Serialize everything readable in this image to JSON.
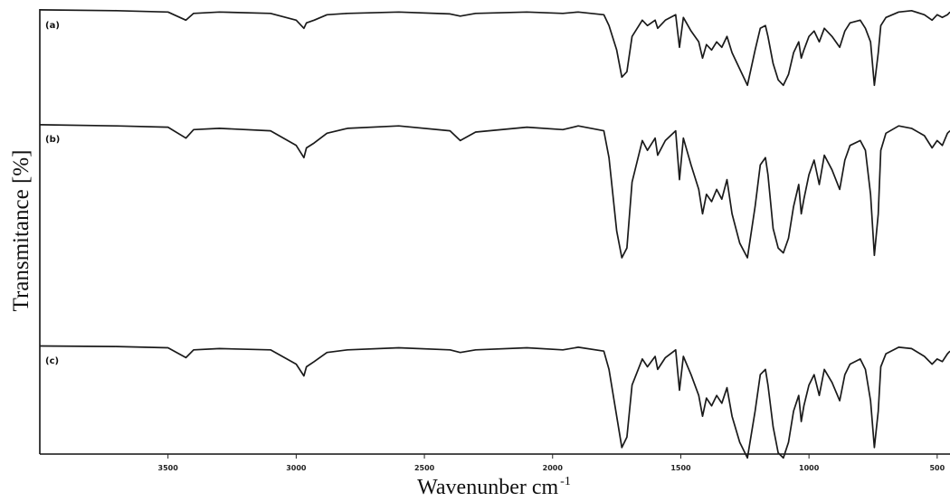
{
  "chart_data": {
    "type": "line",
    "title": "",
    "xlabel": "Wavenunber cm",
    "xlabel_superscript": "-1",
    "ylabel": "Transmitance [%]",
    "x_reversed": true,
    "xlim": [
      4000,
      450
    ],
    "xticks": [
      3500,
      3000,
      2500,
      2000,
      1500,
      1000,
      500
    ],
    "xtick_labels": [
      "3500",
      "3000",
      "2500",
      "2000",
      "1500",
      "1000",
      "500"
    ],
    "grid": false,
    "legend": "none",
    "series": [
      {
        "name": "(a)",
        "color": "#2a1a14",
        "x": [
          4000,
          3700,
          3500,
          3430,
          3400,
          3300,
          3100,
          3000,
          2970,
          2960,
          2930,
          2880,
          2800,
          2600,
          2400,
          2360,
          2300,
          2100,
          1960,
          1900,
          1800,
          1780,
          1750,
          1730,
          1710,
          1690,
          1650,
          1630,
          1600,
          1590,
          1560,
          1520,
          1505,
          1490,
          1460,
          1430,
          1415,
          1400,
          1380,
          1360,
          1340,
          1320,
          1300,
          1270,
          1240,
          1210,
          1190,
          1170,
          1160,
          1140,
          1120,
          1100,
          1080,
          1060,
          1040,
          1030,
          1020,
          1000,
          980,
          960,
          940,
          910,
          880,
          860,
          840,
          800,
          780,
          760,
          745,
          730,
          720,
          700,
          650,
          600,
          550,
          520,
          500,
          480,
          460,
          450
        ],
        "y": [
          99.8,
          99.5,
          99,
          96,
          98.5,
          99,
          98.5,
          96,
          93,
          95,
          96,
          98,
          98.5,
          99,
          98.3,
          97.5,
          98.5,
          99,
          98.5,
          99,
          98,
          94,
          85,
          75,
          77,
          90,
          96,
          94,
          96,
          93,
          96,
          98,
          86,
          97,
          92,
          88,
          82,
          87,
          85,
          88,
          86,
          90,
          84,
          78,
          72,
          85,
          93,
          94,
          90,
          80,
          74,
          72,
          76,
          84,
          88,
          82,
          85,
          90,
          92,
          88,
          93,
          90,
          86,
          92,
          95,
          96,
          93,
          88,
          72,
          84,
          94,
          97,
          99,
          99.5,
          98,
          96,
          98,
          97,
          98,
          99
        ]
      },
      {
        "name": "(b)",
        "color": "#111111",
        "x": [
          4000,
          3700,
          3500,
          3430,
          3400,
          3300,
          3100,
          3000,
          2970,
          2960,
          2930,
          2880,
          2800,
          2600,
          2400,
          2360,
          2300,
          2100,
          1960,
          1900,
          1800,
          1780,
          1750,
          1730,
          1710,
          1690,
          1650,
          1630,
          1600,
          1590,
          1560,
          1520,
          1505,
          1490,
          1460,
          1430,
          1415,
          1400,
          1380,
          1360,
          1340,
          1320,
          1300,
          1270,
          1240,
          1210,
          1190,
          1170,
          1160,
          1140,
          1120,
          1100,
          1080,
          1060,
          1040,
          1030,
          1020,
          1000,
          980,
          960,
          940,
          910,
          880,
          860,
          840,
          800,
          780,
          760,
          745,
          730,
          720,
          700,
          650,
          600,
          550,
          520,
          500,
          480,
          460,
          450
        ],
        "y": [
          98.5,
          98,
          97.5,
          93,
          96.5,
          97,
          96,
          90,
          85,
          89,
          91,
          95,
          97,
          98,
          96,
          92,
          95.5,
          97.5,
          96.5,
          98,
          96,
          85,
          55,
          44,
          48,
          75,
          92,
          88,
          93,
          86,
          92,
          96,
          76,
          93,
          82,
          72,
          62,
          70,
          67,
          72,
          68,
          76,
          62,
          50,
          44,
          65,
          82,
          85,
          78,
          56,
          48,
          46,
          52,
          65,
          74,
          62,
          68,
          78,
          84,
          74,
          86,
          80,
          72,
          84,
          90,
          92,
          88,
          70,
          45,
          62,
          88,
          95,
          98,
          97,
          94,
          89,
          92,
          90,
          95,
          96
        ]
      },
      {
        "name": "(c)",
        "color": "#111111",
        "x": [
          4000,
          3700,
          3500,
          3430,
          3400,
          3300,
          3100,
          3000,
          2970,
          2960,
          2930,
          2880,
          2800,
          2600,
          2400,
          2360,
          2300,
          2100,
          1960,
          1900,
          1800,
          1780,
          1750,
          1730,
          1710,
          1690,
          1650,
          1630,
          1600,
          1590,
          1560,
          1520,
          1505,
          1490,
          1460,
          1430,
          1415,
          1400,
          1380,
          1360,
          1340,
          1320,
          1300,
          1270,
          1240,
          1210,
          1190,
          1170,
          1160,
          1140,
          1120,
          1100,
          1080,
          1060,
          1040,
          1030,
          1020,
          1000,
          980,
          960,
          940,
          910,
          880,
          860,
          840,
          800,
          780,
          760,
          745,
          730,
          720,
          700,
          650,
          600,
          550,
          520,
          500,
          480,
          460,
          450
        ],
        "y": [
          99,
          98.8,
          98.3,
          94.5,
          97.5,
          98,
          97.5,
          92,
          87.5,
          91,
          93,
          96.5,
          97.5,
          98.3,
          97.5,
          96.5,
          97.5,
          98.3,
          97.5,
          98.5,
          97,
          90,
          72,
          60,
          64,
          84,
          94,
          91,
          95,
          90,
          94.5,
          97.5,
          82,
          95,
          88,
          80,
          72,
          79,
          76,
          80,
          77,
          83,
          72,
          62,
          56,
          74,
          88,
          90,
          84,
          68,
          58,
          56,
          62,
          74,
          80,
          70,
          76,
          84,
          88,
          80,
          90,
          85,
          78,
          88,
          92,
          94,
          90,
          78,
          60,
          74,
          91,
          96,
          98.5,
          98,
          95,
          92,
          94,
          93,
          96,
          97
        ]
      }
    ]
  }
}
